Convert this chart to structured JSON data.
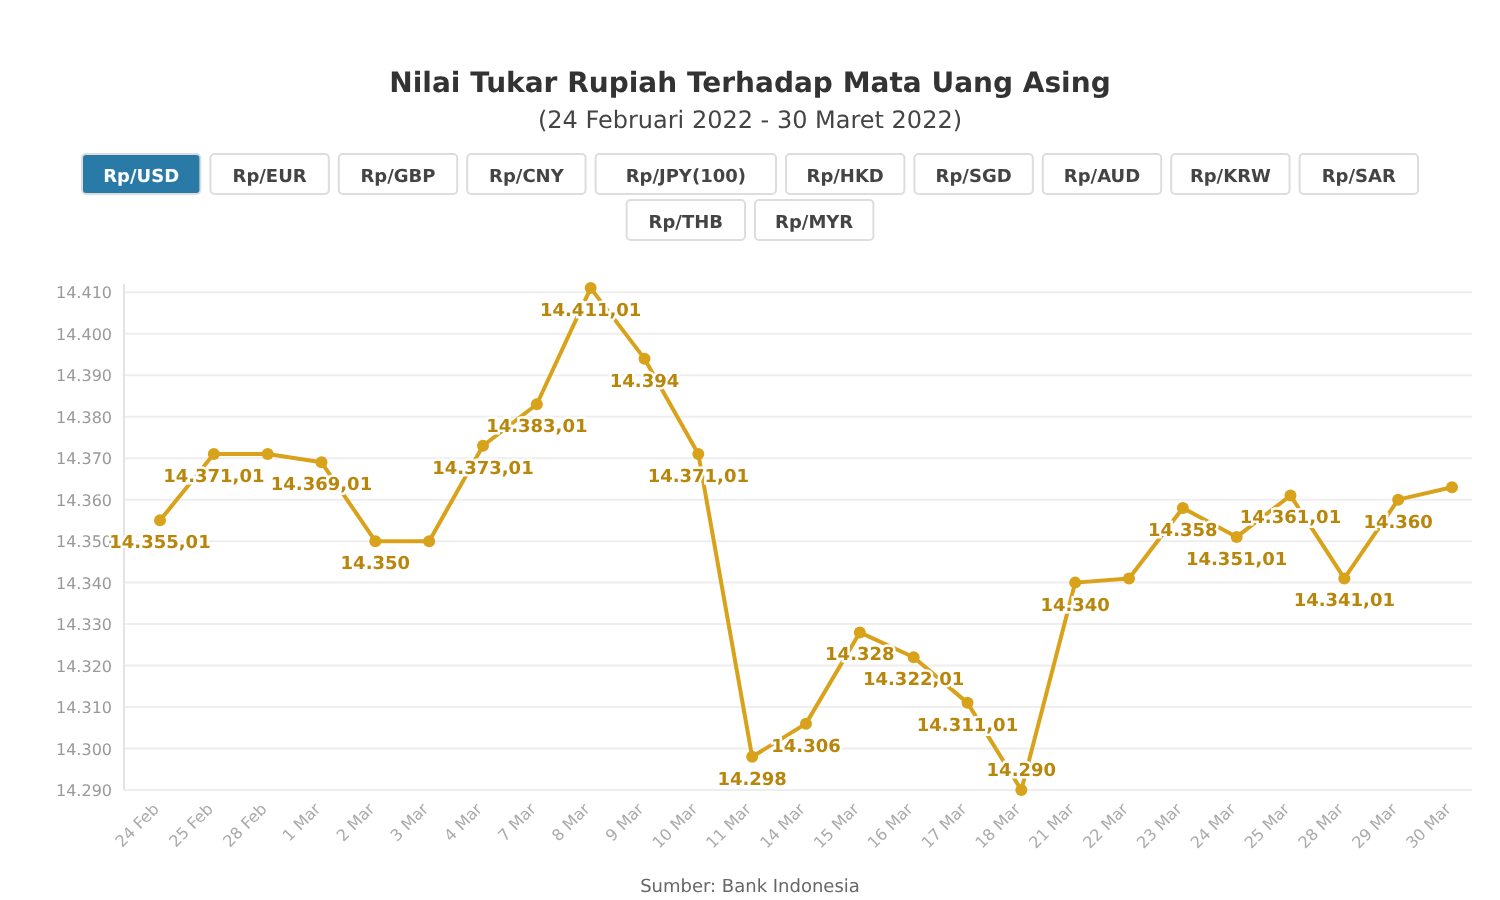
{
  "chart_data": {
    "type": "line",
    "title": "Nilai Tukar Rupiah Terhadap Mata Uang Asing",
    "subtitle": "(24 Februari 2022 - 30 Maret 2022)",
    "annotations": [
      "Rp/USD",
      "Rp/EUR",
      "Rp/GBP",
      "Rp/CNY",
      "Rp/JPY(100)",
      "Rp/HKD",
      "Rp/SGD",
      "Rp/AUD",
      "Rp/KRW",
      "Rp/SAR",
      "Rp/THB",
      "Rp/MYR",
      "Sumber: Bank Indonesia"
    ],
    "categories": [
      "24 Feb",
      "25 Feb",
      "28 Feb",
      "1 Mar",
      "2 Mar",
      "3 Mar",
      "4 Mar",
      "7 Mar",
      "8 Mar",
      "9 Mar",
      "10 Mar",
      "11 Mar",
      "14 Mar",
      "15 Mar",
      "16 Mar",
      "17 Mar",
      "18 Mar",
      "21 Mar",
      "22 Mar",
      "23 Mar",
      "24 Mar",
      "25 Mar",
      "28 Mar",
      "29 Mar",
      "30 Mar"
    ],
    "series": [
      {
        "color": "#d9a21b",
        "values": [
          14355.01,
          14371.01,
          14371,
          14369.01,
          14350,
          14350,
          14373.01,
          14383.01,
          14411.01,
          14394,
          14371.01,
          14298,
          14306,
          14328,
          14322.01,
          14311.01,
          14290,
          14340,
          14341,
          14358,
          14351.01,
          14361.01,
          14341.01,
          14360,
          14363
        ],
        "value_labels": [
          "14.355,01",
          "14.371,01",
          null,
          "14.369,01",
          "14.350",
          null,
          "14.373,01",
          "14.383,01",
          "14.411,01",
          "14.394",
          "14.371,01",
          "14.298",
          "14.306",
          "14.328",
          "14.322,01",
          "14.311,01",
          "14.290",
          "14.340",
          null,
          "14.358",
          "14.351,01",
          "14.361,01",
          "14.341,01",
          "14.360",
          null
        ]
      }
    ],
    "ylim": [
      14290,
      14412
    ],
    "yticks": [
      {
        "value": 14290,
        "label": "14.290"
      },
      {
        "value": 14300,
        "label": "14.300"
      },
      {
        "value": 14310,
        "label": "14.310"
      },
      {
        "value": 14320,
        "label": "14.320"
      },
      {
        "value": 14330,
        "label": "14.330"
      },
      {
        "value": 14340,
        "label": "14.340"
      },
      {
        "value": 14350,
        "label": "14.350"
      },
      {
        "value": 14360,
        "label": "14.360"
      },
      {
        "value": 14370,
        "label": "14.370"
      },
      {
        "value": 14380,
        "label": "14.380"
      },
      {
        "value": 14390,
        "label": "14.390"
      },
      {
        "value": 14400,
        "label": "14.400"
      },
      {
        "value": 14410,
        "label": "14.410"
      }
    ],
    "grid": "y",
    "marker": "circle",
    "line_style": "solid"
  }
}
